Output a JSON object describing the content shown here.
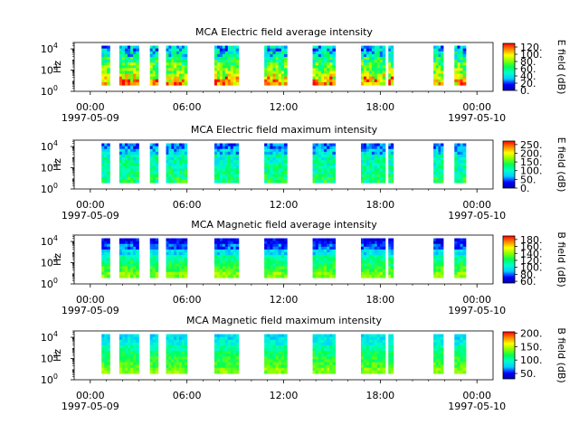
{
  "chart_data": [
    {
      "type": "heatmap",
      "title": "MCA  Electric field average intensity",
      "ylabel": "Hz",
      "colorbar_label": "E field (dB)",
      "y_scale": "log",
      "ylim": [
        1,
        40000
      ],
      "y_tick_labels": [
        {
          "base": "10",
          "exp": "0"
        },
        {
          "base": "10",
          "exp": "2"
        },
        {
          "base": "10",
          "exp": "4"
        }
      ],
      "x_ticks": [
        {
          "time": "00:00",
          "date": "1997-05-09"
        },
        {
          "time": "06:00",
          "date": ""
        },
        {
          "time": "12:00",
          "date": ""
        },
        {
          "time": "18:00",
          "date": ""
        },
        {
          "time": "00:00",
          "date": "1997-05-10"
        }
      ],
      "xlim_hours": [
        -1,
        25
      ],
      "colorbar_ticks": [
        "0.",
        "20.",
        "40.",
        "60.",
        "80.",
        "100.",
        "120."
      ],
      "colorbar_range": [
        0,
        130
      ],
      "data_intervals_hours": [
        [
          0.7,
          1.2
        ],
        [
          1.8,
          3.0
        ],
        [
          3.7,
          4.2
        ],
        [
          4.7,
          6.0
        ],
        [
          7.7,
          9.2
        ],
        [
          10.8,
          12.2
        ],
        [
          13.8,
          15.2
        ],
        [
          16.8,
          18.3
        ],
        [
          18.5,
          18.8
        ],
        [
          21.3,
          21.9
        ],
        [
          22.6,
          23.3
        ]
      ]
    },
    {
      "type": "heatmap",
      "title": "MCA  Electric field maximum intensity",
      "ylabel": "Hz",
      "colorbar_label": "E field (dB)",
      "y_scale": "log",
      "ylim": [
        1,
        40000
      ],
      "y_tick_labels": [
        {
          "base": "10",
          "exp": "0"
        },
        {
          "base": "10",
          "exp": "2"
        },
        {
          "base": "10",
          "exp": "4"
        }
      ],
      "x_ticks": [
        {
          "time": "00:00",
          "date": "1997-05-09"
        },
        {
          "time": "06:00",
          "date": ""
        },
        {
          "time": "12:00",
          "date": ""
        },
        {
          "time": "18:00",
          "date": ""
        },
        {
          "time": "00:00",
          "date": "1997-05-10"
        }
      ],
      "xlim_hours": [
        -1,
        25
      ],
      "colorbar_ticks": [
        "0.",
        "50.",
        "100.",
        "150.",
        "200.",
        "250."
      ],
      "colorbar_range": [
        0,
        270
      ],
      "data_intervals_hours": [
        [
          0.7,
          1.2
        ],
        [
          1.8,
          3.0
        ],
        [
          3.7,
          4.2
        ],
        [
          4.7,
          6.0
        ],
        [
          7.7,
          9.2
        ],
        [
          10.8,
          12.2
        ],
        [
          13.8,
          15.2
        ],
        [
          16.8,
          18.3
        ],
        [
          18.5,
          18.8
        ],
        [
          21.3,
          21.9
        ],
        [
          22.6,
          23.3
        ]
      ]
    },
    {
      "type": "heatmap",
      "title": "MCA  Magnetic field average intensity",
      "ylabel": "Hz",
      "colorbar_label": "B field (dB)",
      "y_scale": "log",
      "ylim": [
        1,
        40000
      ],
      "y_tick_labels": [
        {
          "base": "10",
          "exp": "0"
        },
        {
          "base": "10",
          "exp": "2"
        },
        {
          "base": "10",
          "exp": "4"
        }
      ],
      "x_ticks": [
        {
          "time": "00:00",
          "date": "1997-05-09"
        },
        {
          "time": "06:00",
          "date": ""
        },
        {
          "time": "12:00",
          "date": ""
        },
        {
          "time": "18:00",
          "date": ""
        },
        {
          "time": "00:00",
          "date": "1997-05-10"
        }
      ],
      "xlim_hours": [
        -1,
        25
      ],
      "colorbar_ticks": [
        "60.",
        "80.",
        "100.",
        "120.",
        "140.",
        "160.",
        "180."
      ],
      "colorbar_range": [
        55,
        190
      ],
      "data_intervals_hours": [
        [
          0.7,
          1.2
        ],
        [
          1.8,
          3.0
        ],
        [
          3.7,
          4.2
        ],
        [
          4.7,
          6.0
        ],
        [
          7.7,
          9.2
        ],
        [
          10.8,
          12.2
        ],
        [
          13.8,
          15.2
        ],
        [
          16.8,
          18.3
        ],
        [
          18.5,
          18.8
        ],
        [
          21.3,
          21.9
        ],
        [
          22.6,
          23.3
        ]
      ]
    },
    {
      "type": "heatmap",
      "title": "MCA  Magnetic field maximum intensity",
      "ylabel": "Hz",
      "colorbar_label": "B field (dB)",
      "y_scale": "log",
      "ylim": [
        1,
        40000
      ],
      "y_tick_labels": [
        {
          "base": "10",
          "exp": "0"
        },
        {
          "base": "10",
          "exp": "2"
        },
        {
          "base": "10",
          "exp": "4"
        }
      ],
      "x_ticks": [
        {
          "time": "00:00",
          "date": "1997-05-09"
        },
        {
          "time": "06:00",
          "date": ""
        },
        {
          "time": "12:00",
          "date": ""
        },
        {
          "time": "18:00",
          "date": ""
        },
        {
          "time": "00:00",
          "date": "1997-05-10"
        }
      ],
      "xlim_hours": [
        -1,
        25
      ],
      "colorbar_ticks": [
        "50.",
        "100.",
        "150.",
        "200."
      ],
      "colorbar_range": [
        30,
        205
      ],
      "data_intervals_hours": [
        [
          0.7,
          1.2
        ],
        [
          1.8,
          3.0
        ],
        [
          3.7,
          4.2
        ],
        [
          4.7,
          6.0
        ],
        [
          7.7,
          9.2
        ],
        [
          10.8,
          12.2
        ],
        [
          13.8,
          15.2
        ],
        [
          16.8,
          18.3
        ],
        [
          18.5,
          18.8
        ],
        [
          21.3,
          21.9
        ],
        [
          22.6,
          23.3
        ]
      ]
    }
  ],
  "colormap_stops": [
    "#0000aa",
    "#0000ff",
    "#00ccff",
    "#00ffcc",
    "#00ff55",
    "#88ff00",
    "#ffff00",
    "#ff8800",
    "#ff0000"
  ]
}
